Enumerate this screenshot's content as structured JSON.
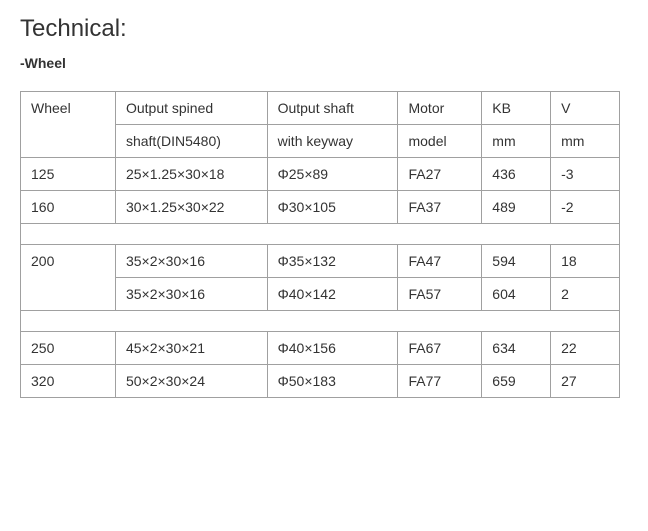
{
  "title": "Technical:",
  "subtitle": "-Wheel",
  "table": {
    "header": {
      "wheel": "Wheel",
      "output_spined": "Output spined",
      "output_shaft": "Output shaft",
      "motor": "Motor",
      "kb": "KB",
      "v": "V"
    },
    "subheader": {
      "spined": "shaft(DIN5480)",
      "shaft": "with keyway",
      "motor": "model",
      "kb": "mm",
      "v": "mm"
    },
    "rows": [
      {
        "wheel": "125",
        "spined": "25×1.25×30×18",
        "shaft": "Φ25×89",
        "motor": "FA27",
        "kb": "436",
        "v": "-3"
      },
      {
        "wheel": "160",
        "spined": "30×1.25×30×22",
        "shaft": "Φ30×105",
        "motor": "FA37",
        "kb": "489",
        "v": "-2"
      },
      {
        "wheel": "200",
        "spined": "35×2×30×16",
        "shaft": "Φ35×132",
        "motor": "FA47",
        "kb": "594",
        "v": "18"
      },
      {
        "wheel": "",
        "spined": "35×2×30×16",
        "shaft": "Φ40×142",
        "motor": "FA57",
        "kb": "604",
        "v": "2"
      },
      {
        "wheel": "250",
        "spined": "45×2×30×21",
        "shaft": "Φ40×156",
        "motor": "FA67",
        "kb": "634",
        "v": "22"
      },
      {
        "wheel": "320",
        "spined": "50×2×30×24",
        "shaft": "Φ50×183",
        "motor": "FA77",
        "kb": "659",
        "v": "27"
      }
    ]
  }
}
